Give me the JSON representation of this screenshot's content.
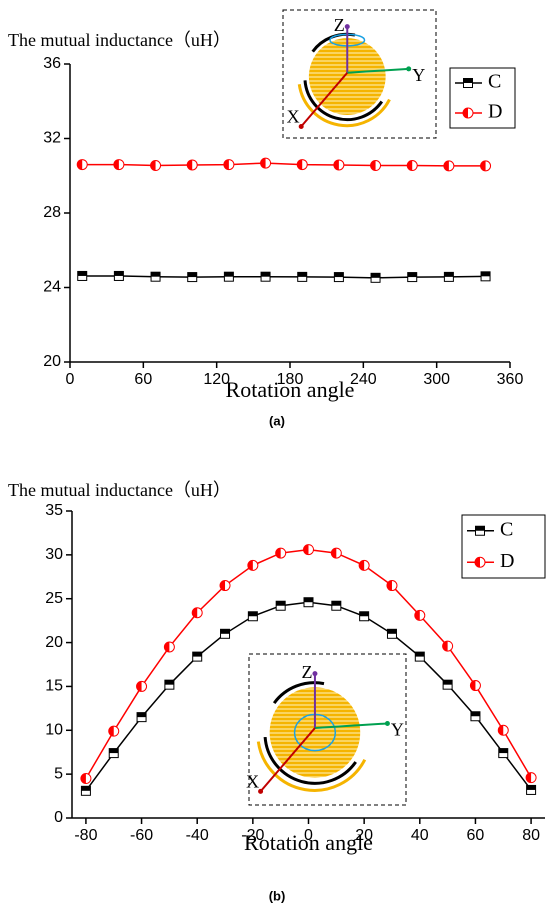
{
  "chart_data": [
    {
      "type": "line",
      "title": "The mutual inductance（uH）",
      "x_label": "Rotation angle",
      "caption": "(a)",
      "x": [
        10,
        40,
        70,
        100,
        130,
        160,
        190,
        220,
        250,
        280,
        310,
        340
      ],
      "xlim": [
        0,
        360
      ],
      "xticks": [
        0,
        60,
        120,
        180,
        240,
        300,
        360
      ],
      "ylim": [
        20,
        36
      ],
      "yticks": [
        20,
        24,
        28,
        32,
        36
      ],
      "series": [
        {
          "name": "C",
          "color": "#000000",
          "values": [
            24.62,
            24.62,
            24.58,
            24.56,
            24.58,
            24.58,
            24.57,
            24.56,
            24.52,
            24.56,
            24.57,
            24.6
          ]
        },
        {
          "name": "D",
          "color": "#ff0000",
          "values": [
            30.6,
            30.6,
            30.55,
            30.58,
            30.6,
            30.68,
            30.6,
            30.58,
            30.55,
            30.55,
            30.53,
            30.53
          ]
        }
      ],
      "inset_labels": [
        "Z",
        "Y",
        "X"
      ]
    },
    {
      "type": "line",
      "title": "The mutual inductance（uH）",
      "x_label": "Rotation angle",
      "caption": "(b)",
      "x": [
        -80,
        -70,
        -60,
        -50,
        -40,
        -30,
        -20,
        -10,
        0,
        10,
        20,
        30,
        40,
        50,
        60,
        70,
        80
      ],
      "xlim": [
        -85,
        85
      ],
      "xticks": [
        -80,
        -60,
        -40,
        -20,
        0,
        20,
        40,
        60,
        80
      ],
      "ylim": [
        0,
        35
      ],
      "yticks": [
        0,
        5,
        10,
        15,
        20,
        25,
        30,
        35
      ],
      "series": [
        {
          "name": "C",
          "color": "#000000",
          "values": [
            3.1,
            7.4,
            11.5,
            15.2,
            18.4,
            21.0,
            23.0,
            24.2,
            24.6,
            24.2,
            23.0,
            21.0,
            18.4,
            15.2,
            11.6,
            7.4,
            3.2
          ]
        },
        {
          "name": "D",
          "color": "#ff0000",
          "values": [
            4.5,
            9.9,
            15.0,
            19.5,
            23.4,
            26.5,
            28.8,
            30.2,
            30.6,
            30.2,
            28.8,
            26.5,
            23.1,
            19.6,
            15.1,
            10.0,
            4.6
          ]
        }
      ],
      "inset_labels": [
        "Z",
        "Y",
        "X"
      ]
    }
  ]
}
